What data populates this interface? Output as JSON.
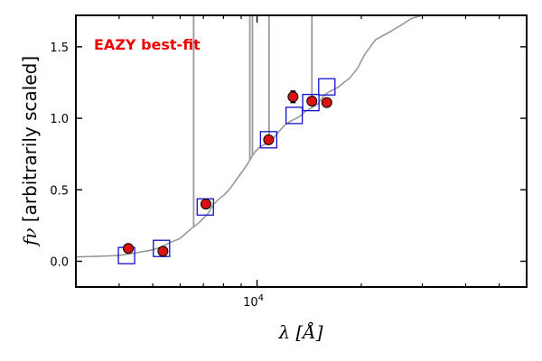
{
  "chart_data": {
    "type": "scatter",
    "x_scale": "log",
    "xlim": [
      3000,
      60000
    ],
    "ylim": [
      -0.18,
      1.72
    ],
    "xlabel": "λ [Å]",
    "ylabel": "f_ν [arbitrarily scaled]",
    "ylabel_symbol": "fν",
    "ylabel_text": " [arbitrarily scaled]",
    "xlabel_symbol": "λ",
    "xlabel_unit": "[Å]",
    "y_ticks": [
      0.0,
      0.5,
      1.0,
      1.5
    ],
    "y_tick_labels": [
      "0.0",
      "0.5",
      "1.0",
      "1.5"
    ],
    "x_major_ticks": [
      10000
    ],
    "x_major_tick_labels": [
      "10^4"
    ],
    "x_minor_ticks": [
      4000,
      5000,
      6000,
      7000,
      8000,
      9000,
      20000,
      30000,
      40000,
      50000
    ],
    "annotation": "EAZY best-fit",
    "annotation_color": "#ee0000",
    "colors": {
      "template": "#999999",
      "observed_fill": "#dd1111",
      "observed_edge": "#000000",
      "model_box": "#1111cc"
    },
    "series": [
      {
        "type": "line",
        "x": [
          3000,
          3500,
          4000,
          4500,
          5000,
          5300,
          5600,
          6000,
          6400,
          6800,
          7000,
          7200,
          7500,
          7800,
          8000,
          8300,
          8600,
          8900,
          9200,
          9500,
          9700,
          9900,
          10200,
          10600,
          11000,
          11500,
          12000,
          12500,
          13000,
          13400,
          13800,
          14300,
          15000,
          15500,
          16000,
          16600,
          17200,
          17800,
          18500,
          19500,
          20500,
          22000,
          24000,
          26000,
          28000,
          30000,
          35000,
          40000,
          50000,
          60000
        ],
        "y": [
          0.03,
          0.035,
          0.04,
          0.06,
          0.08,
          0.1,
          0.13,
          0.16,
          0.22,
          0.27,
          0.3,
          0.33,
          0.4,
          0.44,
          0.46,
          0.5,
          0.55,
          0.6,
          0.65,
          0.7,
          0.74,
          0.77,
          0.8,
          0.82,
          0.84,
          0.9,
          0.95,
          0.98,
          1.0,
          1.02,
          1.05,
          1.07,
          1.1,
          1.15,
          1.18,
          1.2,
          1.22,
          1.25,
          1.28,
          1.35,
          1.45,
          1.55,
          1.6,
          1.65,
          1.7,
          1.72,
          1.72,
          1.72,
          1.72,
          1.72
        ]
      },
      {
        "type": "emission_lines",
        "x": [
          6563,
          9532,
          9700,
          10830,
          14400
        ],
        "peak_y": [
          1.72,
          1.72,
          1.72,
          1.72,
          1.72
        ]
      },
      {
        "type": "scatter",
        "x": [
          4250,
          5350,
          7120,
          10800,
          12700,
          14400,
          15900
        ],
        "y": [
          0.09,
          0.07,
          0.4,
          0.85,
          1.15,
          1.12,
          1.11
        ],
        "yerr": [
          0.0,
          0.0,
          0.02,
          0.02,
          0.04,
          0.02,
          0.0
        ]
      },
      {
        "type": "scatter",
        "x": [
          4200,
          5300,
          7090,
          10800,
          12800,
          14300,
          15900
        ],
        "y": [
          0.04,
          0.09,
          0.38,
          0.85,
          1.02,
          1.11,
          1.22
        ]
      }
    ]
  }
}
